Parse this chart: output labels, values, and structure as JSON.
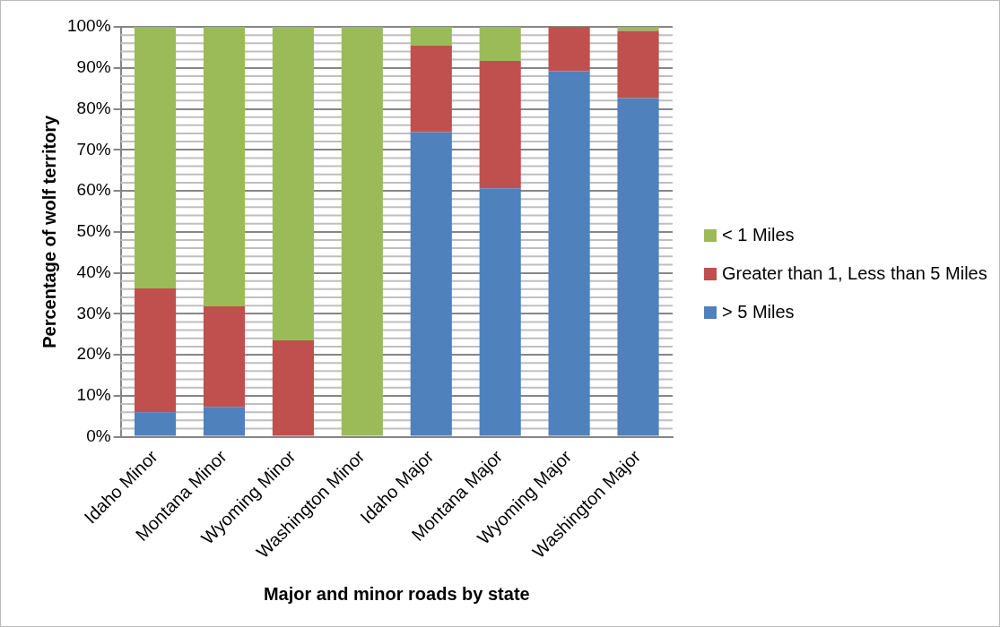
{
  "chart_data": {
    "type": "bar",
    "stacked": true,
    "xlabel": "Major and minor roads by state",
    "ylabel": "Percentage of wolf territory",
    "categories": [
      "Idaho Minor",
      "Montana Minor",
      "Wyoming Minor",
      "Washington Minor",
      "Idaho Major",
      "Montana Major",
      "Wyoming Major",
      "Washington Major"
    ],
    "series": [
      {
        "name": "> 5 Miles",
        "color": "#4f81bd",
        "values": [
          6,
          7.3,
          0,
          0,
          74.3,
          60.6,
          89.2,
          82.6
        ]
      },
      {
        "name": "Greater than 1, Less than 5 Miles",
        "color": "#c0504d",
        "values": [
          30.2,
          24.5,
          23.5,
          0,
          21.1,
          31.1,
          10.8,
          16.4
        ]
      },
      {
        "name": "< 1 Miles",
        "color": "#9bbb59",
        "values": [
          63.8,
          68.2,
          76.5,
          100,
          4.6,
          8.3,
          0,
          1
        ]
      }
    ],
    "ylim": [
      0,
      100
    ],
    "yticks": [
      {
        "value": 0,
        "label": "0%"
      },
      {
        "value": 10,
        "label": "10%"
      },
      {
        "value": 20,
        "label": "20%"
      },
      {
        "value": 30,
        "label": "30%"
      },
      {
        "value": 40,
        "label": "40%"
      },
      {
        "value": 50,
        "label": "50%"
      },
      {
        "value": 60,
        "label": "60%"
      },
      {
        "value": 70,
        "label": "70%"
      },
      {
        "value": 80,
        "label": "80%"
      },
      {
        "value": 90,
        "label": "90%"
      },
      {
        "value": 100,
        "label": "100%"
      }
    ],
    "grid": "y",
    "legend": "right"
  }
}
